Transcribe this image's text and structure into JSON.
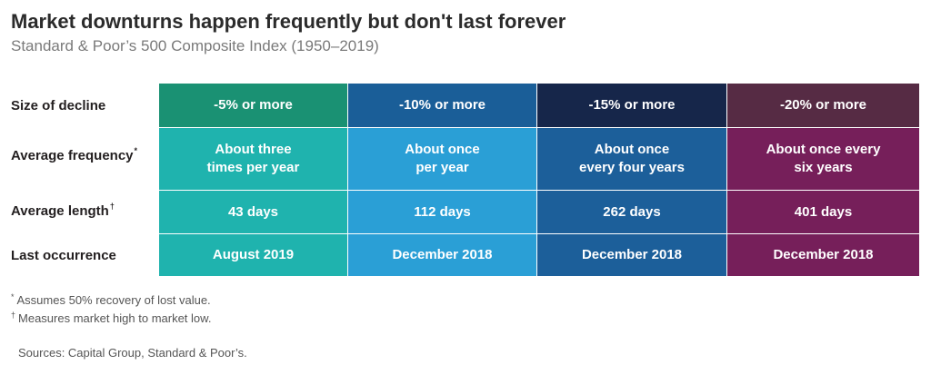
{
  "title": "Market downturns happen frequently but don't last forever",
  "subtitle": "Standard & Poor’s 500 Composite Index (1950–2019)",
  "chart_data": {
    "type": "table",
    "row_labels": [
      {
        "text": "Size of decline",
        "mark": ""
      },
      {
        "text": "Average frequency",
        "mark": "*"
      },
      {
        "text": "Average length",
        "mark": "†"
      },
      {
        "text": "Last occurrence",
        "mark": ""
      }
    ],
    "columns": [
      {
        "header": "-5% or more",
        "frequency": "About three\ntimes per year",
        "length": "43 days",
        "last_occurrence": "August 2019",
        "header_color": "#1a9173",
        "body_color": "#1fb3ae"
      },
      {
        "header": "-10% or more",
        "frequency": "About once\nper year",
        "length": "112 days",
        "last_occurrence": "December 2018",
        "header_color": "#1a5e98",
        "body_color": "#2a9fd6"
      },
      {
        "header": "-15% or more",
        "frequency": "About once\nevery four years",
        "length": "262 days",
        "last_occurrence": "December 2018",
        "header_color": "#16264a",
        "body_color": "#1c5f9a"
      },
      {
        "header": "-20% or more",
        "frequency": "About once every\nsix years",
        "length": "401 days",
        "last_occurrence": "December 2018",
        "header_color": "#562b44",
        "body_color": "#761f5a"
      }
    ]
  },
  "footnotes": [
    {
      "mark": "*",
      "text": "Assumes 50% recovery of lost value."
    },
    {
      "mark": "†",
      "text": "Measures market high to market low."
    }
  ],
  "sources": "Sources: Capital Group, Standard & Poor’s."
}
